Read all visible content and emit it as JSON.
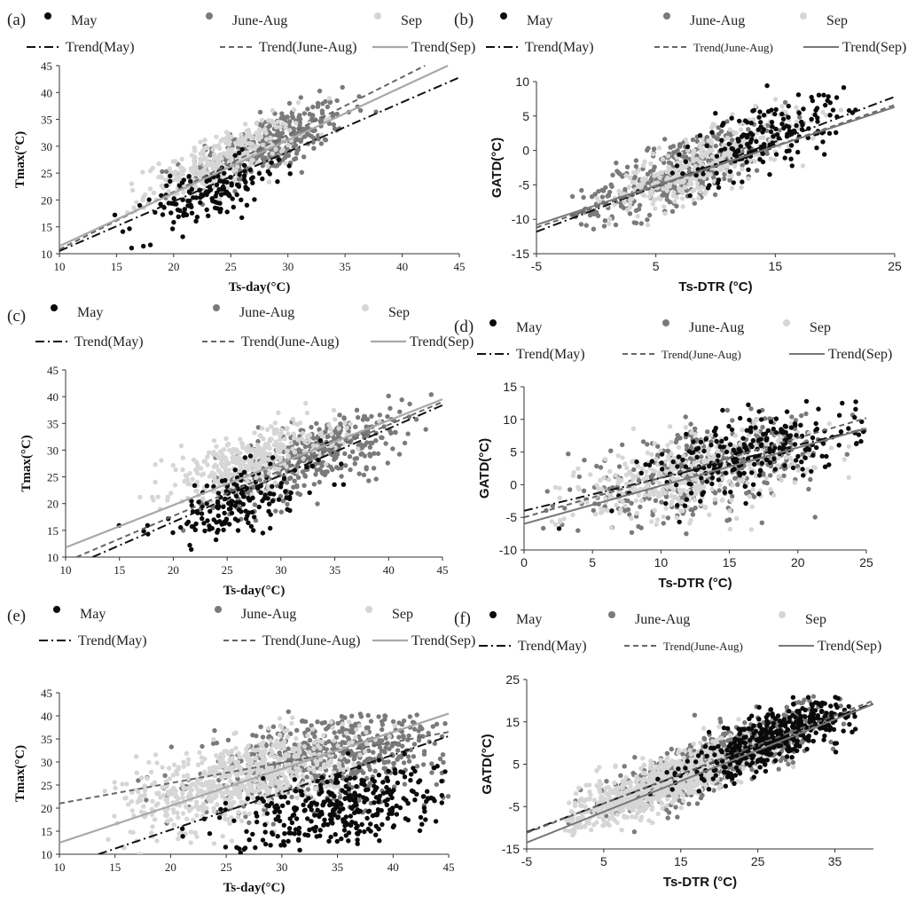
{
  "legend_labels": {
    "may": "May",
    "jja": "June-Aug",
    "sep": "Sep",
    "trend_may": "Trend(May)",
    "trend_jja": "Trend(June-Aug)",
    "trend_sep": "Trend(Sep)"
  },
  "series_colors": {
    "may": "#0a0a0a",
    "jja": "#7a7a7a",
    "sep": "#d6d6d6"
  },
  "chart_data": [
    {
      "panel_label": "(a)",
      "type": "scatter",
      "xlabel": "Ts-day(°C)",
      "ylabel": "Tmax(°C)",
      "xlim": [
        10,
        45
      ],
      "ylim": [
        10,
        45
      ],
      "xticks": [
        10,
        15,
        20,
        25,
        30,
        35,
        40,
        45
      ],
      "yticks": [
        10,
        15,
        20,
        25,
        30,
        35,
        40,
        45
      ],
      "series": [
        {
          "name": "May",
          "center": [
            23,
            21
          ],
          "spread": [
            3.2,
            3.5
          ],
          "corr": 0.7,
          "n": 140,
          "xr": [
            14,
            38
          ],
          "yr": [
            11,
            39
          ]
        },
        {
          "name": "June-Aug",
          "center": [
            28,
            30
          ],
          "spread": [
            3.5,
            4.0
          ],
          "corr": 0.75,
          "n": 400,
          "xr": [
            18,
            40
          ],
          "yr": [
            18,
            42
          ]
        },
        {
          "name": "Sep",
          "center": [
            24,
            27
          ],
          "spread": [
            3.2,
            3.8
          ],
          "corr": 0.75,
          "n": 320,
          "xr": [
            15,
            38
          ],
          "yr": [
            17,
            40
          ]
        }
      ],
      "trends": [
        {
          "name": "Trend(May)",
          "x": [
            10,
            45
          ],
          "y": [
            10.5,
            42.8
          ]
        },
        {
          "name": "Trend(June-Aug)",
          "x": [
            10,
            42
          ],
          "y": [
            10.8,
            45
          ]
        },
        {
          "name": "Trend(Sep)",
          "x": [
            10,
            44
          ],
          "y": [
            11.4,
            45
          ]
        }
      ]
    },
    {
      "panel_label": "(b)",
      "type": "scatter",
      "xlabel": "Ts-DTR (°C)",
      "ylabel": "GATD(°C)",
      "xlim": [
        -5,
        25
      ],
      "ylim": [
        -15,
        10
      ],
      "xticks": [
        -5,
        5,
        15,
        25
      ],
      "yticks": [
        -15,
        -10,
        -5,
        0,
        5,
        10
      ],
      "series": [
        {
          "name": "May",
          "center": [
            14,
            2
          ],
          "spread": [
            3.5,
            3.5
          ],
          "corr": 0.7,
          "n": 180,
          "xr": [
            0,
            22
          ],
          "yr": [
            -12,
            9.5
          ]
        },
        {
          "name": "June-Aug",
          "center": [
            7,
            -3
          ],
          "spread": [
            4.5,
            4.0
          ],
          "corr": 0.8,
          "n": 420,
          "xr": [
            -2,
            22
          ],
          "yr": [
            -12,
            8
          ]
        },
        {
          "name": "Sep",
          "center": [
            9,
            -2
          ],
          "spread": [
            4.0,
            3.5
          ],
          "corr": 0.8,
          "n": 380,
          "xr": [
            -1,
            22
          ],
          "yr": [
            -11,
            8
          ]
        }
      ],
      "trends": [
        {
          "name": "Trend(May)",
          "x": [
            -5,
            25
          ],
          "y": [
            -11.8,
            7.8
          ]
        },
        {
          "name": "Trend(June-Aug)",
          "x": [
            -5,
            25
          ],
          "y": [
            -11.2,
            6.6
          ]
        },
        {
          "name": "Trend(Sep)",
          "x": [
            -5,
            25
          ],
          "y": [
            -10.8,
            6.3
          ]
        }
      ]
    },
    {
      "panel_label": "(c)",
      "type": "scatter",
      "xlabel": "Ts-day(°C)",
      "ylabel": "Tmax(°C)",
      "xlim": [
        10,
        45
      ],
      "ylim": [
        10,
        45
      ],
      "xticks": [
        10,
        15,
        20,
        25,
        30,
        35,
        40,
        45
      ],
      "yticks": [
        10,
        15,
        20,
        25,
        30,
        35,
        40,
        45
      ],
      "series": [
        {
          "name": "May",
          "center": [
            26,
            20
          ],
          "spread": [
            4.0,
            4.0
          ],
          "corr": 0.6,
          "n": 160,
          "xr": [
            13,
            42
          ],
          "yr": [
            10,
            36
          ]
        },
        {
          "name": "June-Aug",
          "center": [
            33,
            29
          ],
          "spread": [
            4.5,
            4.5
          ],
          "corr": 0.7,
          "n": 420,
          "xr": [
            17,
            44
          ],
          "yr": [
            14,
            41
          ]
        },
        {
          "name": "Sep",
          "center": [
            27,
            28
          ],
          "spread": [
            4.0,
            3.5
          ],
          "corr": 0.65,
          "n": 360,
          "xr": [
            16,
            43
          ],
          "yr": [
            16,
            40
          ]
        }
      ],
      "trends": [
        {
          "name": "Trend(May)",
          "x": [
            12.5,
            45
          ],
          "y": [
            10,
            38.4
          ]
        },
        {
          "name": "Trend(June-Aug)",
          "x": [
            11,
            45
          ],
          "y": [
            10,
            39
          ]
        },
        {
          "name": "Trend(Sep)",
          "x": [
            10,
            45
          ],
          "y": [
            11.8,
            39.5
          ]
        }
      ]
    },
    {
      "panel_label": "(d)",
      "type": "scatter",
      "xlabel": "Ts-DTR (°C)",
      "ylabel": "GATD(°C)",
      "xlim": [
        0,
        25
      ],
      "ylim": [
        -10,
        15
      ],
      "xticks": [
        0,
        5,
        10,
        15,
        20,
        25
      ],
      "yticks": [
        -10,
        -5,
        0,
        5,
        10,
        15
      ],
      "series": [
        {
          "name": "May",
          "center": [
            17,
            5
          ],
          "spread": [
            4.0,
            3.5
          ],
          "corr": 0.6,
          "n": 240,
          "xr": [
            1,
            25
          ],
          "yr": [
            -8,
            13
          ]
        },
        {
          "name": "June-Aug",
          "center": [
            13,
            2
          ],
          "spread": [
            5.0,
            4.0
          ],
          "corr": 0.6,
          "n": 420,
          "xr": [
            1,
            25
          ],
          "yr": [
            -8,
            12
          ]
        },
        {
          "name": "Sep",
          "center": [
            12,
            1.5
          ],
          "spread": [
            4.5,
            3.8
          ],
          "corr": 0.6,
          "n": 420,
          "xr": [
            2,
            24
          ],
          "yr": [
            -7,
            11
          ]
        }
      ],
      "trends": [
        {
          "name": "Trend(May)",
          "x": [
            0,
            25
          ],
          "y": [
            -4,
            8.6
          ]
        },
        {
          "name": "Trend(June-Aug)",
          "x": [
            0,
            25
          ],
          "y": [
            -5,
            10.2
          ]
        },
        {
          "name": "Trend(Sep)",
          "x": [
            0,
            25
          ],
          "y": [
            -6,
            8.6
          ]
        }
      ]
    },
    {
      "panel_label": "(e)",
      "type": "scatter",
      "xlabel": "Ts-day(°C)",
      "ylabel": "Tmax(°C)",
      "xlim": [
        10,
        45
      ],
      "ylim": [
        10,
        45
      ],
      "xticks": [
        10,
        15,
        20,
        25,
        30,
        35,
        40,
        45
      ],
      "yticks": [
        10,
        15,
        20,
        25,
        30,
        35,
        40,
        45
      ],
      "series": [
        {
          "name": "May",
          "center": [
            35,
            20
          ],
          "spread": [
            5.0,
            4.5
          ],
          "corr": 0.5,
          "n": 360,
          "xr": [
            13,
            45
          ],
          "yr": [
            10,
            37
          ]
        },
        {
          "name": "June-Aug",
          "center": [
            34,
            31
          ],
          "spread": [
            5.5,
            5.0
          ],
          "corr": 0.4,
          "n": 650,
          "xr": [
            14,
            45
          ],
          "yr": [
            12,
            41
          ]
        },
        {
          "name": "Sep",
          "center": [
            26,
            26
          ],
          "spread": [
            5.0,
            5.5
          ],
          "corr": 0.55,
          "n": 700,
          "xr": [
            14,
            42
          ],
          "yr": [
            10,
            40
          ]
        }
      ],
      "trends": [
        {
          "name": "Trend(May)",
          "x": [
            13.5,
            45
          ],
          "y": [
            10,
            35.6
          ]
        },
        {
          "name": "Trend(June-Aug)",
          "x": [
            10,
            45
          ],
          "y": [
            21,
            36.5
          ]
        },
        {
          "name": "Trend(Sep)",
          "x": [
            10,
            45
          ],
          "y": [
            12.5,
            40.5
          ]
        }
      ]
    },
    {
      "panel_label": "(f)",
      "type": "scatter",
      "xlabel": "Ts-DTR (°C)",
      "ylabel": "GATD(°C)",
      "xlim": [
        -5,
        40
      ],
      "ylim": [
        -15,
        25
      ],
      "xticks": [
        -5,
        5,
        15,
        25,
        35
      ],
      "yticks": [
        -15,
        -5,
        5,
        15,
        25
      ],
      "series": [
        {
          "name": "May",
          "center": [
            28,
            12
          ],
          "spread": [
            6.0,
            5.5
          ],
          "corr": 0.8,
          "n": 420,
          "xr": [
            0,
            38
          ],
          "yr": [
            -11,
            21
          ]
        },
        {
          "name": "June-Aug",
          "center": [
            20,
            6
          ],
          "spread": [
            7.5,
            6.5
          ],
          "corr": 0.85,
          "n": 700,
          "xr": [
            0,
            38
          ],
          "yr": [
            -11,
            21
          ]
        },
        {
          "name": "Sep",
          "center": [
            12,
            0
          ],
          "spread": [
            6.5,
            5.5
          ],
          "corr": 0.85,
          "n": 800,
          "xr": [
            0,
            30
          ],
          "yr": [
            -12,
            16
          ]
        }
      ],
      "trends": [
        {
          "name": "Trend(May)",
          "x": [
            -5,
            40
          ],
          "y": [
            -11,
            19.4
          ]
        },
        {
          "name": "Trend(June-Aug)",
          "x": [
            -5,
            40
          ],
          "y": [
            -11.2,
            20
          ]
        },
        {
          "name": "Trend(Sep)",
          "x": [
            -5,
            40
          ],
          "y": [
            -13.5,
            19.2
          ]
        }
      ]
    }
  ]
}
